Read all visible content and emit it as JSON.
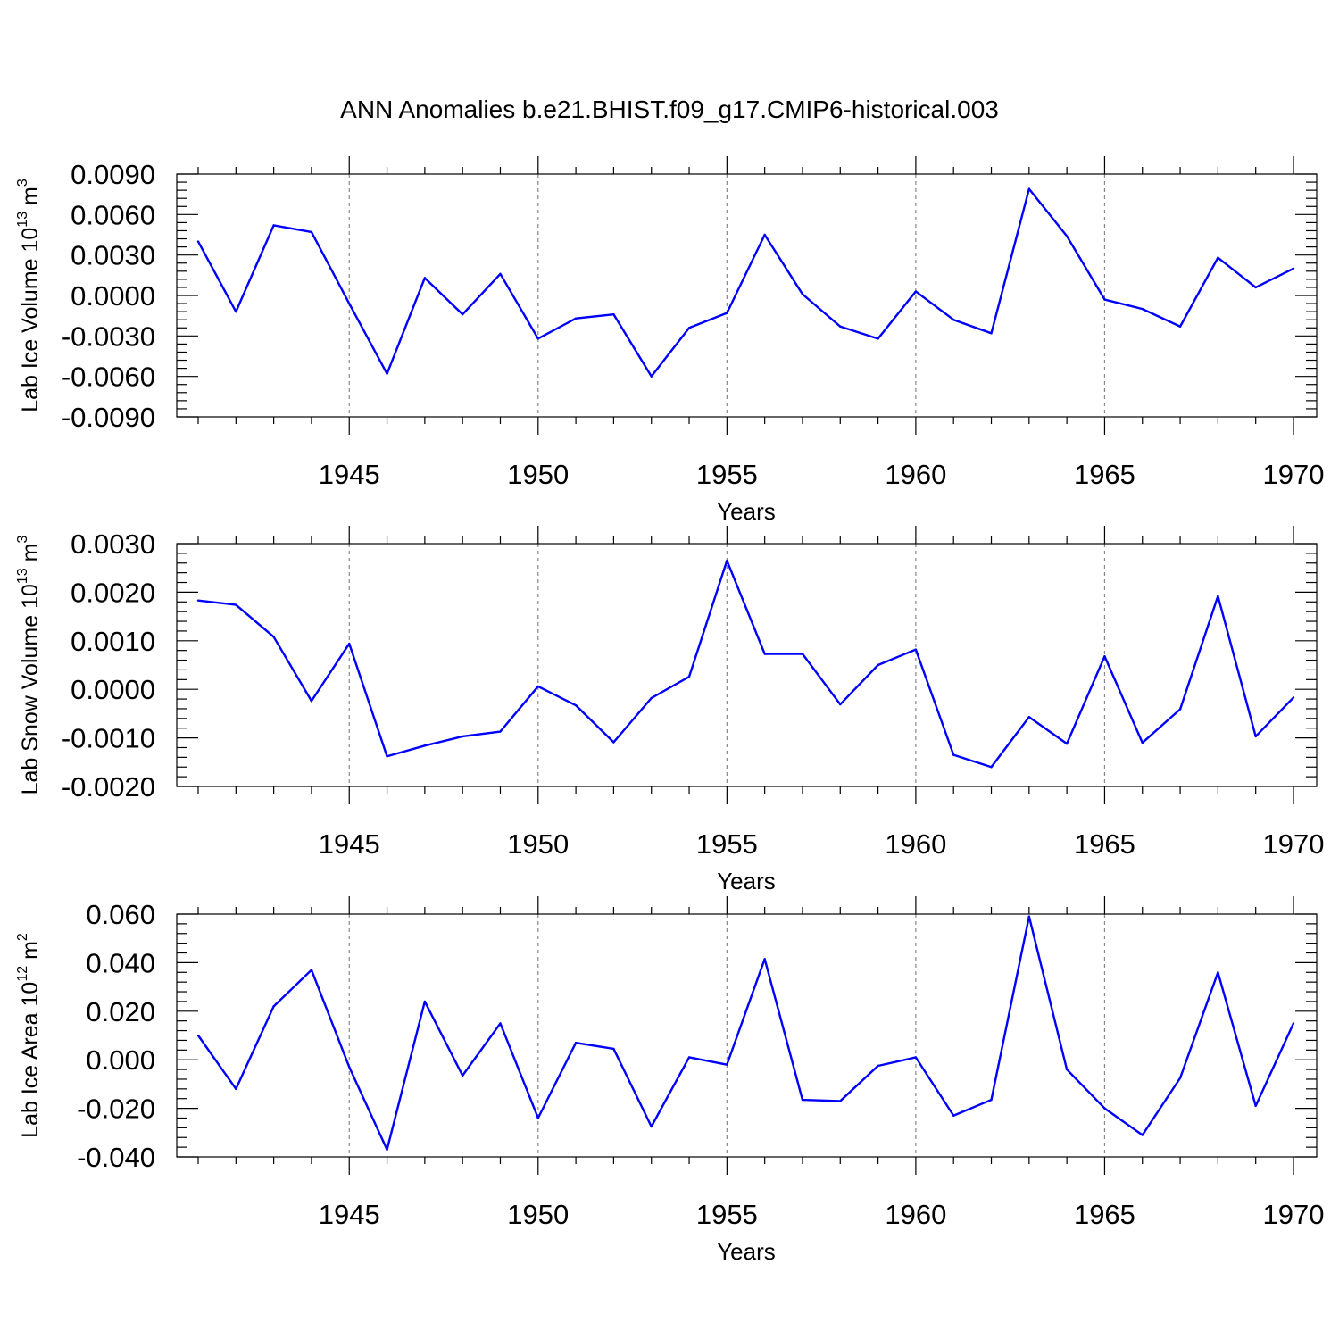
{
  "title": "ANN Anomalies b.e21.BHIST.f09_g17.CMIP6-historical.003",
  "colors": {
    "series": "#0000ff",
    "grid": "#888888",
    "axis": "#000000"
  },
  "chart_data": [
    {
      "type": "line",
      "ylabel_main": "Lab Ice Volume 10",
      "ylabel_exp": "13",
      "ylabel_unit": " m",
      "ylabel_unit_exp": "3",
      "xlabel": "Years",
      "xlim": [
        1941,
        1970
      ],
      "ylim": [
        -0.009,
        0.009
      ],
      "xticks": [
        1945,
        1950,
        1955,
        1960,
        1965,
        1970
      ],
      "yticks": [
        -0.009,
        -0.006,
        -0.003,
        0.0,
        0.003,
        0.006,
        0.009
      ],
      "ytick_labels": [
        "-0.0090",
        "-0.0060",
        "-0.0030",
        "0.0000",
        "0.0030",
        "0.0060",
        "0.0090"
      ],
      "grid": "dashed vertical at major x ticks",
      "series": [
        {
          "name": "Lab Ice Volume",
          "x": [
            1941,
            1942,
            1943,
            1944,
            1945,
            1946,
            1947,
            1948,
            1949,
            1950,
            1951,
            1952,
            1953,
            1954,
            1955,
            1956,
            1957,
            1958,
            1959,
            1960,
            1961,
            1962,
            1963,
            1964,
            1965,
            1966,
            1967,
            1968,
            1969,
            1970
          ],
          "values": [
            0.004,
            -0.0012,
            0.0052,
            0.0047,
            -0.0006,
            -0.0058,
            0.0013,
            -0.0014,
            0.0016,
            -0.0032,
            -0.0017,
            -0.0014,
            -0.006,
            -0.0024,
            -0.0013,
            0.0045,
            0.0001,
            -0.0023,
            -0.0032,
            0.0003,
            -0.0018,
            -0.0028,
            0.0079,
            0.0044,
            -0.0003,
            -0.001,
            -0.0023,
            0.0028,
            0.0006,
            0.002
          ]
        }
      ]
    },
    {
      "type": "line",
      "ylabel_main": "Lab Snow Volume 10",
      "ylabel_exp": "13",
      "ylabel_unit": " m",
      "ylabel_unit_exp": "3",
      "xlabel": "Years",
      "xlim": [
        1941,
        1970
      ],
      "ylim": [
        -0.002,
        0.003
      ],
      "xticks": [
        1945,
        1950,
        1955,
        1960,
        1965,
        1970
      ],
      "yticks": [
        -0.002,
        -0.001,
        0.0,
        0.001,
        0.002,
        0.003
      ],
      "ytick_labels": [
        "-0.0020",
        "-0.0010",
        "0.0000",
        "0.0010",
        "0.0020",
        "0.0030"
      ],
      "grid": "dashed vertical at major x ticks",
      "series": [
        {
          "name": "Lab Snow Volume",
          "x": [
            1941,
            1942,
            1943,
            1944,
            1945,
            1946,
            1947,
            1948,
            1949,
            1950,
            1951,
            1952,
            1953,
            1954,
            1955,
            1956,
            1957,
            1958,
            1959,
            1960,
            1961,
            1962,
            1963,
            1964,
            1965,
            1966,
            1967,
            1968,
            1969,
            1970
          ],
          "values": [
            0.00183,
            0.00174,
            0.00108,
            -0.00024,
            0.00094,
            -0.00138,
            -0.00116,
            -0.00097,
            -0.00087,
            6e-05,
            -0.00033,
            -0.00109,
            -0.00018,
            0.00026,
            0.00265,
            0.00073,
            0.00073,
            -0.00031,
            0.0005,
            0.00082,
            -0.00135,
            -0.0016,
            -0.00057,
            -0.00112,
            0.00068,
            -0.0011,
            -0.00041,
            0.00192,
            -0.00097,
            -0.00017
          ]
        }
      ]
    },
    {
      "type": "line",
      "ylabel_main": "Lab Ice Area 10",
      "ylabel_exp": "12",
      "ylabel_unit": " m",
      "ylabel_unit_exp": "2",
      "xlabel": "Years",
      "xlim": [
        1941,
        1970
      ],
      "ylim": [
        -0.04,
        0.06
      ],
      "xticks": [
        1945,
        1950,
        1955,
        1960,
        1965,
        1970
      ],
      "yticks": [
        -0.04,
        -0.02,
        0.0,
        0.02,
        0.04,
        0.06
      ],
      "ytick_labels": [
        "-0.040",
        "-0.020",
        "0.000",
        "0.020",
        "0.040",
        "0.060"
      ],
      "grid": "dashed vertical at major x ticks",
      "series": [
        {
          "name": "Lab Ice Area",
          "x": [
            1941,
            1942,
            1943,
            1944,
            1945,
            1946,
            1947,
            1948,
            1949,
            1950,
            1951,
            1952,
            1953,
            1954,
            1955,
            1956,
            1957,
            1958,
            1959,
            1960,
            1961,
            1962,
            1963,
            1964,
            1965,
            1966,
            1967,
            1968,
            1969,
            1970
          ],
          "values": [
            0.01,
            -0.012,
            0.022,
            0.037,
            -0.003,
            -0.037,
            0.024,
            -0.0065,
            0.015,
            -0.024,
            0.007,
            0.0045,
            -0.0275,
            0.001,
            -0.002,
            0.0415,
            -0.0165,
            -0.017,
            -0.0025,
            0.001,
            -0.023,
            -0.0165,
            0.059,
            -0.004,
            -0.02,
            -0.031,
            -0.0075,
            0.036,
            -0.019,
            0.015
          ]
        }
      ]
    }
  ]
}
